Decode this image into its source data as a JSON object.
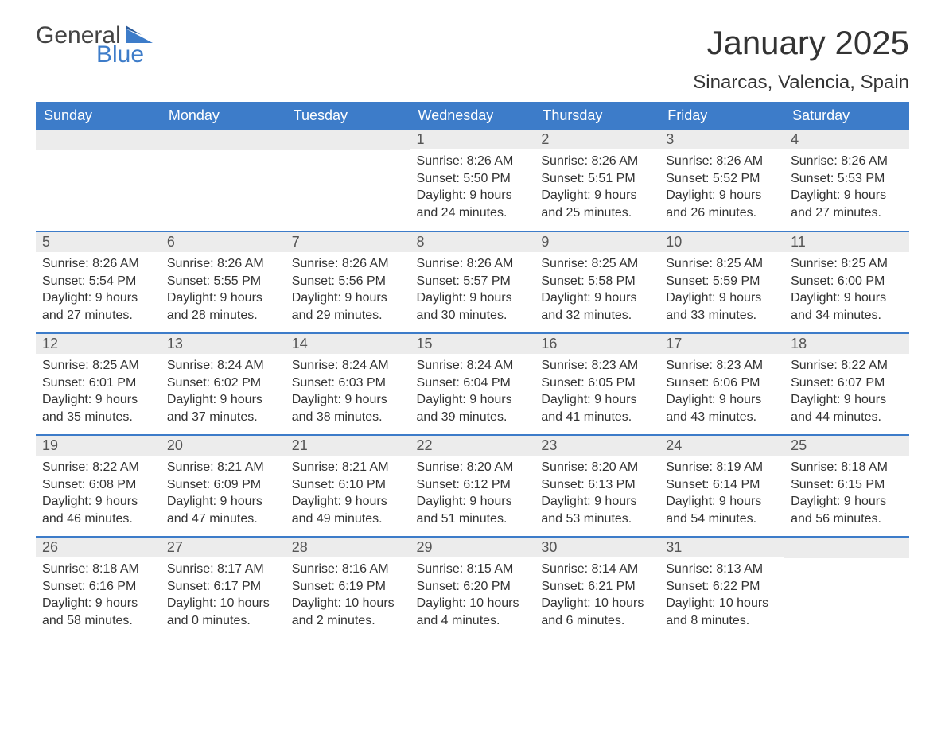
{
  "logo": {
    "text1": "General",
    "text2": "Blue"
  },
  "title": "January 2025",
  "location": "Sinarcas, Valencia, Spain",
  "colors": {
    "header_bg": "#3d7cc9",
    "header_text": "#ffffff",
    "daynum_bg": "#ececec",
    "text": "#333333",
    "row_border": "#3d7cc9",
    "logo_gray": "#444444",
    "logo_blue": "#3d7cc9"
  },
  "day_headers": [
    "Sunday",
    "Monday",
    "Tuesday",
    "Wednesday",
    "Thursday",
    "Friday",
    "Saturday"
  ],
  "weeks": [
    [
      {
        "day": "",
        "sunrise": "",
        "sunset": "",
        "daylight": ""
      },
      {
        "day": "",
        "sunrise": "",
        "sunset": "",
        "daylight": ""
      },
      {
        "day": "",
        "sunrise": "",
        "sunset": "",
        "daylight": ""
      },
      {
        "day": "1",
        "sunrise": "Sunrise: 8:26 AM",
        "sunset": "Sunset: 5:50 PM",
        "daylight": "Daylight: 9 hours and 24 minutes."
      },
      {
        "day": "2",
        "sunrise": "Sunrise: 8:26 AM",
        "sunset": "Sunset: 5:51 PM",
        "daylight": "Daylight: 9 hours and 25 minutes."
      },
      {
        "day": "3",
        "sunrise": "Sunrise: 8:26 AM",
        "sunset": "Sunset: 5:52 PM",
        "daylight": "Daylight: 9 hours and 26 minutes."
      },
      {
        "day": "4",
        "sunrise": "Sunrise: 8:26 AM",
        "sunset": "Sunset: 5:53 PM",
        "daylight": "Daylight: 9 hours and 27 minutes."
      }
    ],
    [
      {
        "day": "5",
        "sunrise": "Sunrise: 8:26 AM",
        "sunset": "Sunset: 5:54 PM",
        "daylight": "Daylight: 9 hours and 27 minutes."
      },
      {
        "day": "6",
        "sunrise": "Sunrise: 8:26 AM",
        "sunset": "Sunset: 5:55 PM",
        "daylight": "Daylight: 9 hours and 28 minutes."
      },
      {
        "day": "7",
        "sunrise": "Sunrise: 8:26 AM",
        "sunset": "Sunset: 5:56 PM",
        "daylight": "Daylight: 9 hours and 29 minutes."
      },
      {
        "day": "8",
        "sunrise": "Sunrise: 8:26 AM",
        "sunset": "Sunset: 5:57 PM",
        "daylight": "Daylight: 9 hours and 30 minutes."
      },
      {
        "day": "9",
        "sunrise": "Sunrise: 8:25 AM",
        "sunset": "Sunset: 5:58 PM",
        "daylight": "Daylight: 9 hours and 32 minutes."
      },
      {
        "day": "10",
        "sunrise": "Sunrise: 8:25 AM",
        "sunset": "Sunset: 5:59 PM",
        "daylight": "Daylight: 9 hours and 33 minutes."
      },
      {
        "day": "11",
        "sunrise": "Sunrise: 8:25 AM",
        "sunset": "Sunset: 6:00 PM",
        "daylight": "Daylight: 9 hours and 34 minutes."
      }
    ],
    [
      {
        "day": "12",
        "sunrise": "Sunrise: 8:25 AM",
        "sunset": "Sunset: 6:01 PM",
        "daylight": "Daylight: 9 hours and 35 minutes."
      },
      {
        "day": "13",
        "sunrise": "Sunrise: 8:24 AM",
        "sunset": "Sunset: 6:02 PM",
        "daylight": "Daylight: 9 hours and 37 minutes."
      },
      {
        "day": "14",
        "sunrise": "Sunrise: 8:24 AM",
        "sunset": "Sunset: 6:03 PM",
        "daylight": "Daylight: 9 hours and 38 minutes."
      },
      {
        "day": "15",
        "sunrise": "Sunrise: 8:24 AM",
        "sunset": "Sunset: 6:04 PM",
        "daylight": "Daylight: 9 hours and 39 minutes."
      },
      {
        "day": "16",
        "sunrise": "Sunrise: 8:23 AM",
        "sunset": "Sunset: 6:05 PM",
        "daylight": "Daylight: 9 hours and 41 minutes."
      },
      {
        "day": "17",
        "sunrise": "Sunrise: 8:23 AM",
        "sunset": "Sunset: 6:06 PM",
        "daylight": "Daylight: 9 hours and 43 minutes."
      },
      {
        "day": "18",
        "sunrise": "Sunrise: 8:22 AM",
        "sunset": "Sunset: 6:07 PM",
        "daylight": "Daylight: 9 hours and 44 minutes."
      }
    ],
    [
      {
        "day": "19",
        "sunrise": "Sunrise: 8:22 AM",
        "sunset": "Sunset: 6:08 PM",
        "daylight": "Daylight: 9 hours and 46 minutes."
      },
      {
        "day": "20",
        "sunrise": "Sunrise: 8:21 AM",
        "sunset": "Sunset: 6:09 PM",
        "daylight": "Daylight: 9 hours and 47 minutes."
      },
      {
        "day": "21",
        "sunrise": "Sunrise: 8:21 AM",
        "sunset": "Sunset: 6:10 PM",
        "daylight": "Daylight: 9 hours and 49 minutes."
      },
      {
        "day": "22",
        "sunrise": "Sunrise: 8:20 AM",
        "sunset": "Sunset: 6:12 PM",
        "daylight": "Daylight: 9 hours and 51 minutes."
      },
      {
        "day": "23",
        "sunrise": "Sunrise: 8:20 AM",
        "sunset": "Sunset: 6:13 PM",
        "daylight": "Daylight: 9 hours and 53 minutes."
      },
      {
        "day": "24",
        "sunrise": "Sunrise: 8:19 AM",
        "sunset": "Sunset: 6:14 PM",
        "daylight": "Daylight: 9 hours and 54 minutes."
      },
      {
        "day": "25",
        "sunrise": "Sunrise: 8:18 AM",
        "sunset": "Sunset: 6:15 PM",
        "daylight": "Daylight: 9 hours and 56 minutes."
      }
    ],
    [
      {
        "day": "26",
        "sunrise": "Sunrise: 8:18 AM",
        "sunset": "Sunset: 6:16 PM",
        "daylight": "Daylight: 9 hours and 58 minutes."
      },
      {
        "day": "27",
        "sunrise": "Sunrise: 8:17 AM",
        "sunset": "Sunset: 6:17 PM",
        "daylight": "Daylight: 10 hours and 0 minutes."
      },
      {
        "day": "28",
        "sunrise": "Sunrise: 8:16 AM",
        "sunset": "Sunset: 6:19 PM",
        "daylight": "Daylight: 10 hours and 2 minutes."
      },
      {
        "day": "29",
        "sunrise": "Sunrise: 8:15 AM",
        "sunset": "Sunset: 6:20 PM",
        "daylight": "Daylight: 10 hours and 4 minutes."
      },
      {
        "day": "30",
        "sunrise": "Sunrise: 8:14 AM",
        "sunset": "Sunset: 6:21 PM",
        "daylight": "Daylight: 10 hours and 6 minutes."
      },
      {
        "day": "31",
        "sunrise": "Sunrise: 8:13 AM",
        "sunset": "Sunset: 6:22 PM",
        "daylight": "Daylight: 10 hours and 8 minutes."
      },
      {
        "day": "",
        "sunrise": "",
        "sunset": "",
        "daylight": ""
      }
    ]
  ]
}
